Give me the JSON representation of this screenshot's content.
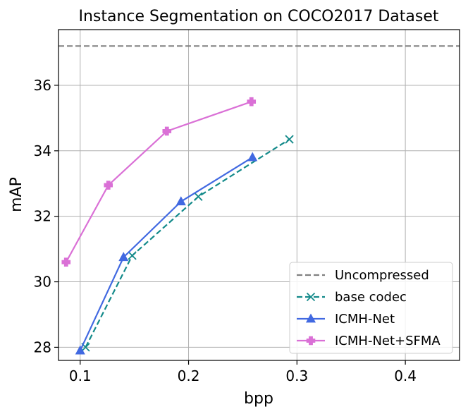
{
  "chart_data": {
    "type": "line",
    "title": "Instance Segmentation on COCO2017 Dataset",
    "xlabel": "bpp",
    "ylabel": "mAP",
    "xlim": [
      0.08,
      0.45
    ],
    "ylim": [
      27.6,
      37.7
    ],
    "xticks": [
      0.1,
      0.2,
      0.3,
      0.4
    ],
    "xtick_labels": [
      "0.1",
      "0.2",
      "0.3",
      "0.4"
    ],
    "yticks": [
      28,
      30,
      32,
      34,
      36
    ],
    "ytick_labels": [
      "28",
      "30",
      "32",
      "34",
      "36"
    ],
    "grid": true,
    "legend_position": "lower-right",
    "reference_lines": [
      {
        "name": "Uncompressed",
        "y": 37.2,
        "color": "#808080",
        "dash": "dashed"
      }
    ],
    "series": [
      {
        "name": "base codec",
        "color": "#138a8a",
        "dash": "dashed",
        "marker": "x",
        "x": [
          0.105,
          0.148,
          0.209,
          0.293
        ],
        "y": [
          28.0,
          30.8,
          32.6,
          34.35
        ]
      },
      {
        "name": "ICMH-Net",
        "color": "#4169e1",
        "dash": "solid",
        "marker": "triangle",
        "x": [
          0.1,
          0.14,
          0.193,
          0.259
        ],
        "y": [
          27.9,
          30.75,
          32.45,
          33.8
        ]
      },
      {
        "name": "ICMH-Net+SFMA",
        "color": "#da70d6",
        "dash": "solid",
        "marker": "plus",
        "x": [
          0.087,
          0.126,
          0.18,
          0.258
        ],
        "y": [
          30.6,
          32.95,
          34.6,
          35.5
        ]
      }
    ],
    "legend_entries": [
      "Uncompressed",
      "base codec",
      "ICMH-Net",
      "ICMH-Net+SFMA"
    ]
  }
}
